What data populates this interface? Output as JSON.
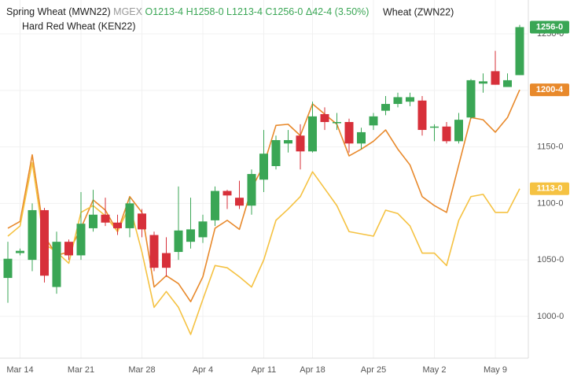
{
  "chart_data": {
    "type": "candlestick",
    "name": "Spring Wheat (MWN22)",
    "exchange": "MGEX",
    "quote": [
      "O1213-4",
      "H1258-0",
      "L1213-4",
      "C1256-0",
      "Δ42-4 (3.50%)"
    ],
    "badge": "1256-0",
    "up_color": "#3aa655",
    "down_color": "#d7303a",
    "categories": [
      null,
      "Mar 14",
      null,
      null,
      null,
      null,
      "Mar 21",
      null,
      null,
      null,
      null,
      "Mar 28",
      null,
      null,
      null,
      null,
      "Apr 4",
      null,
      null,
      null,
      null,
      "Apr 11",
      null,
      null,
      null,
      "Apr 18",
      null,
      null,
      null,
      null,
      "Apr 25",
      null,
      null,
      null,
      null,
      "May 2",
      null,
      null,
      null,
      null,
      "May 9",
      null,
      null
    ],
    "open": [
      1034,
      1056,
      1050,
      1094,
      1026,
      1066,
      1054,
      1078,
      1090,
      1083,
      1078,
      1091,
      1072,
      1056,
      1057,
      1066,
      1070,
      1085,
      1111,
      1105,
      1098,
      1121,
      1133,
      1153,
      1160,
      1146,
      1179,
      1171,
      1172,
      1153,
      1169,
      1182,
      1188,
      1190,
      1191,
      1167,
      1168,
      1155,
      1176,
      1206,
      1217,
      1203,
      1213.5
    ],
    "high": [
      1066,
      1060,
      1100,
      1096,
      1075,
      1068,
      1110,
      1112,
      1105,
      1090,
      1105,
      1095,
      1075,
      1070,
      1115,
      1105,
      1090,
      1115,
      1112,
      1120,
      1130,
      1165,
      1160,
      1165,
      1170,
      1190,
      1185,
      1180,
      1175,
      1167,
      1180,
      1195,
      1198,
      1198,
      1195,
      1170,
      1172,
      1180,
      1210,
      1215,
      1235,
      1215,
      1258
    ],
    "low": [
      1012,
      1054,
      1040,
      1030,
      1020,
      1050,
      1050,
      1075,
      1080,
      1072,
      1070,
      1070,
      1040,
      1035,
      1050,
      1060,
      1065,
      1080,
      1095,
      1095,
      1090,
      1110,
      1130,
      1145,
      1130,
      1145,
      1165,
      1165,
      1145,
      1148,
      1165,
      1178,
      1185,
      1186,
      1160,
      1155,
      1153,
      1153,
      1175,
      1198,
      1205,
      1203,
      1213.5
    ],
    "close": [
      1051,
      1058,
      1094,
      1036,
      1066,
      1054,
      1082,
      1090,
      1083,
      1078,
      1100,
      1077,
      1043,
      1043,
      1076,
      1077,
      1084,
      1111,
      1107,
      1098,
      1126,
      1144,
      1156,
      1156,
      1146,
      1177,
      1172,
      1172,
      1153,
      1163,
      1177,
      1188,
      1194,
      1194,
      1165,
      1168,
      1155,
      1174,
      1209,
      1208,
      1205,
      1209,
      1256
    ],
    "series": [
      {
        "name": "Wheat (ZWN22)",
        "color": "#e8892b",
        "badge": "1200-4",
        "values": [
          1078,
          1084,
          1143,
          1071,
          1054,
          1057,
          1078,
          1103,
          1094,
          1075,
          1106,
          1092,
          1026,
          1036,
          1029,
          1013,
          1035,
          1078,
          1085,
          1077,
          1113,
          1134,
          1169,
          1170,
          1160,
          1188,
          1179,
          1170,
          1142,
          1148,
          1155,
          1165,
          1148,
          1134,
          1106,
          1098,
          1092,
          1134,
          1176,
          1174,
          1163,
          1176,
          1200.5
        ]
      },
      {
        "name": "Hard Red Wheat (KEN22)",
        "color": "#f5c242",
        "badge": "1113-0",
        "values": [
          1071,
          1080,
          1136,
          1064,
          1057,
          1047,
          1092,
          1098,
          1089,
          1075,
          1098,
          1057,
          1008,
          1022,
          1008,
          984,
          1015,
          1045,
          1043,
          1035,
          1026,
          1050,
          1085,
          1095,
          1106,
          1128,
          1113,
          1098,
          1075,
          1073,
          1071,
          1094,
          1091,
          1080,
          1056,
          1056,
          1045,
          1085,
          1106,
          1108,
          1092,
          1092,
          1113
        ]
      }
    ],
    "ylim": [
      963,
      1280
    ],
    "yticks": [
      {
        "value": 1000,
        "label": "1000-0"
      },
      {
        "value": 1050,
        "label": "1050-0"
      },
      {
        "value": 1100,
        "label": "1100-0"
      },
      {
        "value": 1150,
        "label": "1150-0"
      },
      {
        "value": 1200,
        "label": "1200-0"
      },
      {
        "value": 1250,
        "label": "1250-0"
      }
    ],
    "grid": true
  }
}
